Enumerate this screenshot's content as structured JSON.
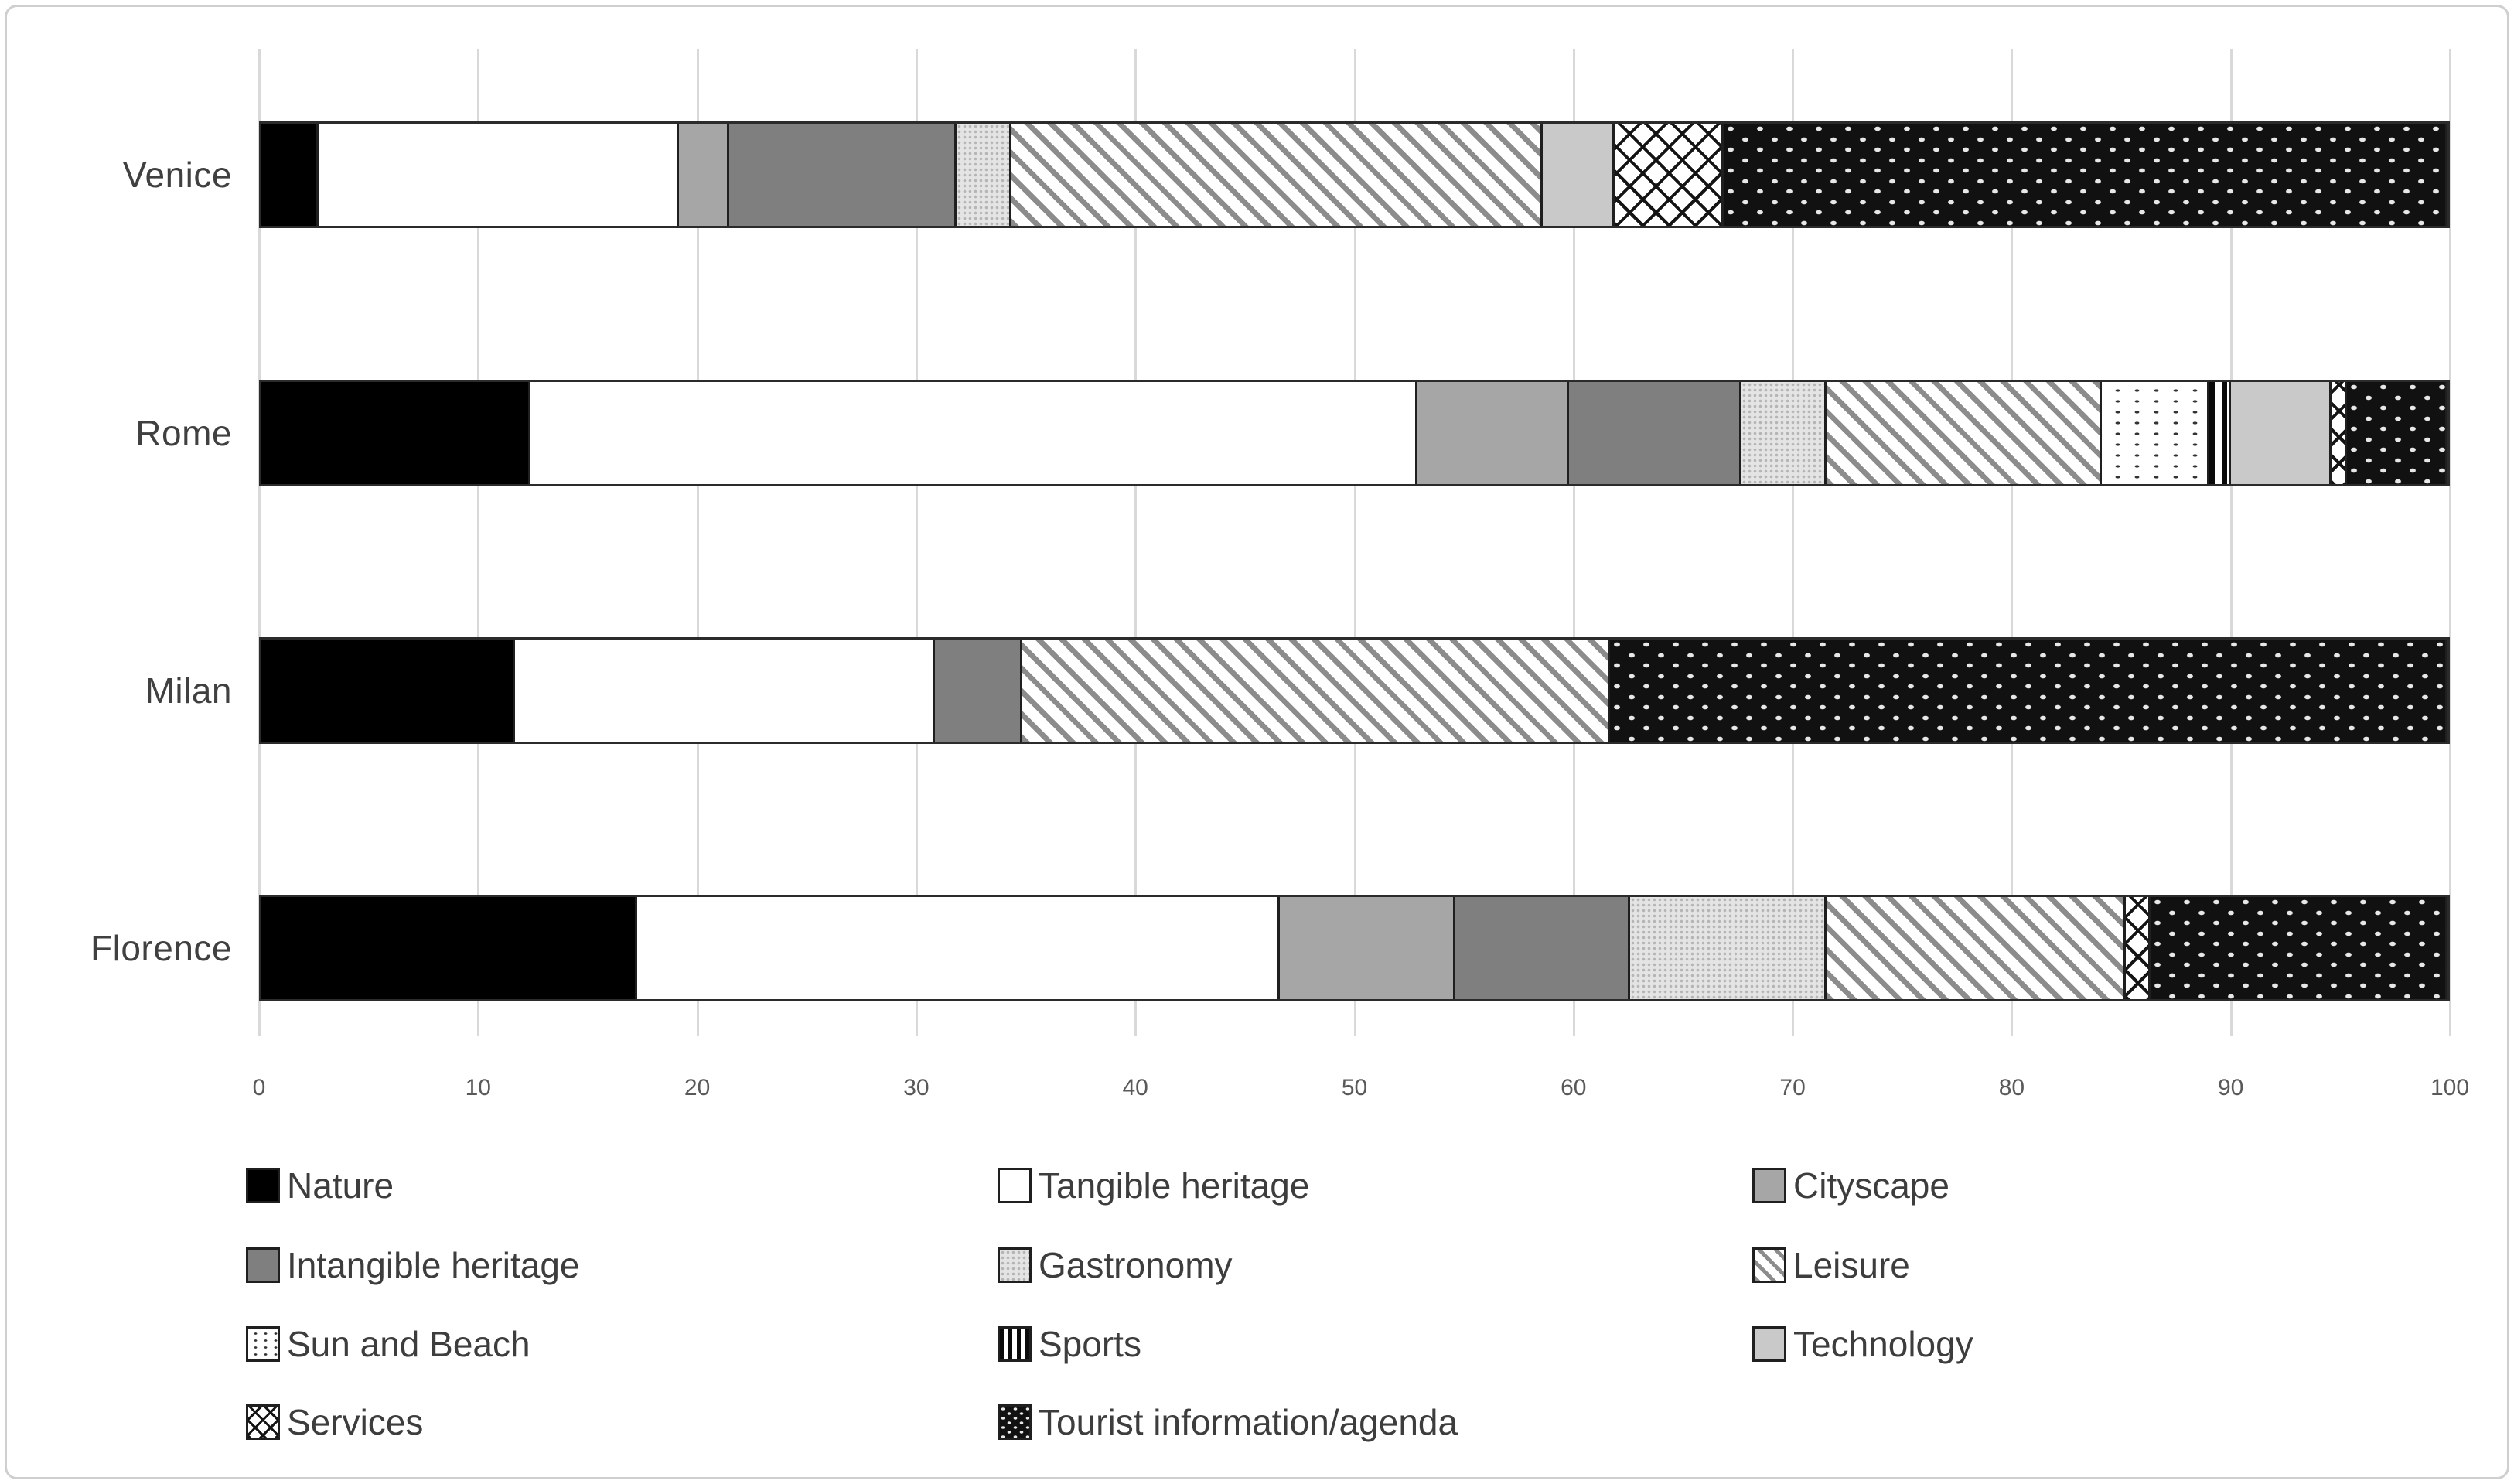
{
  "figure": {
    "background_color": "#ffffff",
    "frame_border_color": "#cfcfcf",
    "gridline_color": "#d9d9d9",
    "bar_outline_color": "#2b2b2b",
    "category_label_color": "#404040",
    "tick_label_color": "#595959",
    "legend_label_color": "#3d3d3d"
  },
  "chart_data": {
    "type": "bar",
    "variant": "horizontal-stacked-100pct",
    "title": "",
    "xlabel": "",
    "ylabel": "",
    "xlim": [
      0,
      100
    ],
    "x_ticks": [
      0,
      10,
      20,
      30,
      40,
      50,
      60,
      70,
      80,
      90,
      100
    ],
    "grid": "vertical light-gray gridlines at each x tick",
    "legend_position": "bottom, 3 columns, 4 rows",
    "categories": [
      "Venice",
      "Rome",
      "Milan",
      "Florence"
    ],
    "series": [
      {
        "name": "Nature",
        "pattern": "solid-black",
        "color": "#000000",
        "values": [
          2.6,
          12.3,
          11.6,
          17.2
        ]
      },
      {
        "name": "Tangible heritage",
        "pattern": "solid-white",
        "color": "#ffffff",
        "values": [
          16.5,
          40.6,
          19.2,
          29.4
        ]
      },
      {
        "name": "Cityscape",
        "pattern": "solid-gray-medium",
        "color": "#a6a6a6",
        "values": [
          2.3,
          6.9,
          0,
          8.0
        ]
      },
      {
        "name": "Intangible heritage",
        "pattern": "solid-gray-dark",
        "color": "#7f7f7f",
        "values": [
          10.4,
          7.9,
          4.0,
          8.0
        ]
      },
      {
        "name": "Gastronomy",
        "pattern": "dotted-light",
        "color": "#e4e4e4",
        "values": [
          2.5,
          3.9,
          0,
          9.0
        ]
      },
      {
        "name": "Leisure",
        "pattern": "diagonal-stripes",
        "color": "#8c8c8c",
        "values": [
          24.3,
          12.6,
          26.9,
          13.7
        ]
      },
      {
        "name": "Sun and Beach",
        "pattern": "sparse-dots",
        "color": "#333333",
        "values": [
          0,
          4.9,
          0,
          0
        ]
      },
      {
        "name": "Sports",
        "pattern": "vertical-lines",
        "color": "#0a0a0a",
        "values": [
          0,
          1.0,
          0,
          0
        ]
      },
      {
        "name": "Technology",
        "pattern": "solid-gray-light",
        "color": "#c9c9c9",
        "values": [
          3.3,
          4.6,
          0,
          0
        ]
      },
      {
        "name": "Services",
        "pattern": "crosshatch",
        "color": "#141414",
        "values": [
          5.0,
          0.7,
          0,
          1.1
        ]
      },
      {
        "name": "Tourist information/agenda",
        "pattern": "black-dashed",
        "color": "#111111",
        "values": [
          33.1,
          4.6,
          38.3,
          13.6
        ]
      }
    ]
  }
}
